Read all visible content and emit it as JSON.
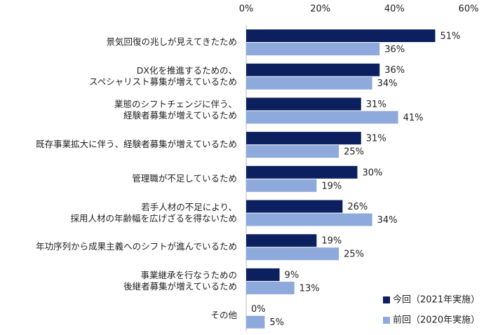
{
  "chart_data": {
    "type": "bar",
    "orientation": "horizontal",
    "categories": [
      "景気回復の兆しが見えてきたため",
      "DX化を推進するための、\nスペシャリスト募集が増えているため",
      "業態のシフトチェンジに伴う、\n経験者募集が増えているため",
      "既存事業拡大に伴う、経験者募集が増えているため",
      "管理職が不足しているため",
      "若手人材の不足により、\n採用人材の年齢幅を広げざるを得ないため",
      "年功序列から成果主義へのシフトが進んでいるため",
      "事業継承を行なうための\n後継者募集が増えているため",
      "その他"
    ],
    "series": [
      {
        "name": "今回（2021年実施）",
        "color": "#0c1f5e",
        "values": [
          51,
          36,
          31,
          31,
          30,
          26,
          19,
          9,
          0
        ],
        "value_labels": [
          "51%",
          "36%",
          "31%",
          "31%",
          "30%",
          "26%",
          "19%",
          "9%",
          "0%"
        ]
      },
      {
        "name": "前回（2020年実施）",
        "color": "#8eaadc",
        "values": [
          36,
          34,
          41,
          25,
          19,
          34,
          25,
          13,
          5
        ],
        "value_labels": [
          "36%",
          "34%",
          "41%",
          "25%",
          "19%",
          "34%",
          "25%",
          "13%",
          "5%"
        ]
      }
    ],
    "xlim": [
      0,
      60
    ],
    "xticks": [
      {
        "value": 0,
        "label": "0%"
      },
      {
        "value": 20,
        "label": "20%"
      },
      {
        "value": 40,
        "label": "40%"
      },
      {
        "value": 60,
        "label": "60%"
      }
    ],
    "legend": "lower right"
  }
}
